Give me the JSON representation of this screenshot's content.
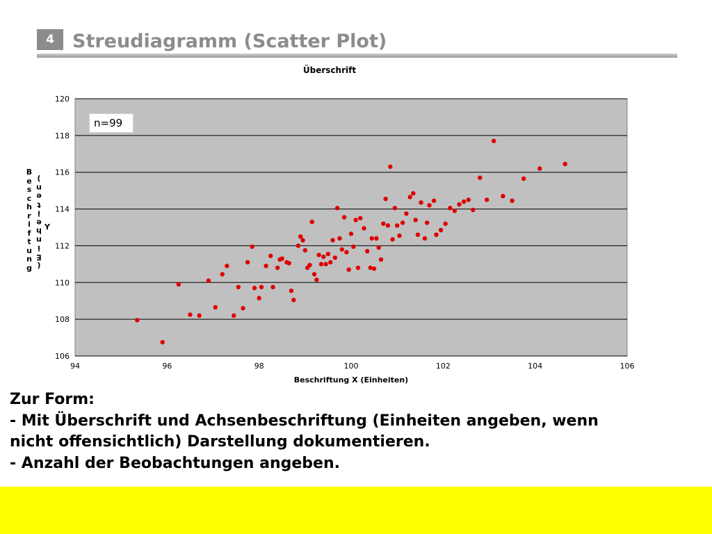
{
  "slide": {
    "number": "4",
    "title": "Streudiagramm (Scatter Plot)"
  },
  "annotation": {
    "n_label": "n=99"
  },
  "notes": {
    "heading": "Zur Form:",
    "line1": "- Mit Überschrift und Achsenbeschriftung (Einheiten angeben, wenn",
    "line2": "nicht offensichtlich) Darstellung dokumentieren.",
    "line3": "- Anzahl der Beobachtungen angeben."
  },
  "colors": {
    "point": "#dd0000",
    "plot_bg": "#c0c0c0",
    "footer": "#ffff00",
    "title": "#8c8c8c"
  },
  "chart_data": {
    "type": "scatter",
    "title": "Überschrift",
    "xlabel": "Beschriftung X (Einheiten)",
    "ylabel_col1": "Beschriftung",
    "ylabel_col2": "(Einheiten)",
    "ylabel_y": "Y",
    "xlim": [
      94,
      106
    ],
    "ylim": [
      106,
      120
    ],
    "xticks": [
      "94",
      "96",
      "98",
      "100",
      "102",
      "104",
      "106"
    ],
    "yticks": [
      "106",
      "108",
      "110",
      "112",
      "114",
      "116",
      "118",
      "120"
    ],
    "grid": true,
    "series": [
      {
        "points": [
          [
            95.35,
            107.95
          ],
          [
            95.9,
            106.75
          ],
          [
            96.25,
            109.9
          ],
          [
            96.5,
            108.25
          ],
          [
            96.7,
            108.2
          ],
          [
            96.9,
            110.1
          ],
          [
            97.05,
            108.65
          ],
          [
            97.2,
            110.45
          ],
          [
            97.3,
            110.9
          ],
          [
            97.45,
            108.2
          ],
          [
            97.55,
            109.75
          ],
          [
            97.65,
            108.6
          ],
          [
            97.75,
            111.1
          ],
          [
            97.85,
            111.95
          ],
          [
            97.9,
            109.7
          ],
          [
            98.0,
            109.15
          ],
          [
            98.05,
            109.75
          ],
          [
            98.15,
            110.9
          ],
          [
            98.25,
            111.45
          ],
          [
            98.3,
            109.75
          ],
          [
            98.4,
            110.8
          ],
          [
            98.45,
            111.25
          ],
          [
            98.5,
            111.3
          ],
          [
            98.6,
            111.1
          ],
          [
            98.65,
            111.05
          ],
          [
            98.7,
            109.55
          ],
          [
            98.75,
            109.05
          ],
          [
            98.85,
            112.0
          ],
          [
            98.9,
            112.5
          ],
          [
            98.95,
            112.3
          ],
          [
            99.0,
            111.75
          ],
          [
            99.05,
            110.8
          ],
          [
            99.1,
            110.95
          ],
          [
            99.15,
            113.3
          ],
          [
            99.2,
            110.45
          ],
          [
            99.25,
            110.15
          ],
          [
            99.3,
            111.5
          ],
          [
            99.35,
            111.0
          ],
          [
            99.4,
            111.4
          ],
          [
            99.45,
            111.0
          ],
          [
            99.5,
            111.55
          ],
          [
            99.55,
            111.1
          ],
          [
            99.6,
            112.3
          ],
          [
            99.65,
            111.35
          ],
          [
            99.7,
            114.05
          ],
          [
            99.75,
            112.4
          ],
          [
            99.8,
            111.8
          ],
          [
            99.85,
            113.55
          ],
          [
            99.9,
            111.65
          ],
          [
            99.95,
            110.7
          ],
          [
            100.0,
            112.65
          ],
          [
            100.05,
            111.95
          ],
          [
            100.1,
            113.4
          ],
          [
            100.15,
            110.8
          ],
          [
            100.2,
            113.5
          ],
          [
            100.28,
            112.95
          ],
          [
            100.35,
            111.7
          ],
          [
            100.42,
            110.8
          ],
          [
            100.45,
            112.4
          ],
          [
            100.5,
            110.75
          ],
          [
            100.55,
            112.4
          ],
          [
            100.6,
            111.9
          ],
          [
            100.65,
            111.25
          ],
          [
            100.7,
            113.2
          ],
          [
            100.75,
            114.55
          ],
          [
            100.8,
            113.1
          ],
          [
            100.85,
            116.3
          ],
          [
            100.9,
            112.35
          ],
          [
            100.95,
            114.05
          ],
          [
            101.0,
            113.1
          ],
          [
            101.05,
            112.55
          ],
          [
            101.12,
            113.25
          ],
          [
            101.2,
            113.75
          ],
          [
            101.28,
            114.65
          ],
          [
            101.35,
            114.85
          ],
          [
            101.4,
            113.4
          ],
          [
            101.45,
            112.6
          ],
          [
            101.52,
            114.35
          ],
          [
            101.6,
            112.4
          ],
          [
            101.65,
            113.25
          ],
          [
            101.7,
            114.2
          ],
          [
            101.8,
            114.45
          ],
          [
            101.85,
            112.6
          ],
          [
            101.95,
            112.85
          ],
          [
            102.05,
            113.2
          ],
          [
            102.15,
            114.05
          ],
          [
            102.25,
            113.9
          ],
          [
            102.35,
            114.25
          ],
          [
            102.45,
            114.4
          ],
          [
            102.55,
            114.5
          ],
          [
            102.65,
            113.95
          ],
          [
            102.8,
            115.7
          ],
          [
            102.95,
            114.5
          ],
          [
            103.1,
            117.7
          ],
          [
            103.3,
            114.7
          ],
          [
            103.5,
            114.45
          ],
          [
            103.75,
            115.65
          ],
          [
            104.1,
            116.2
          ],
          [
            104.65,
            116.45
          ]
        ]
      }
    ]
  }
}
